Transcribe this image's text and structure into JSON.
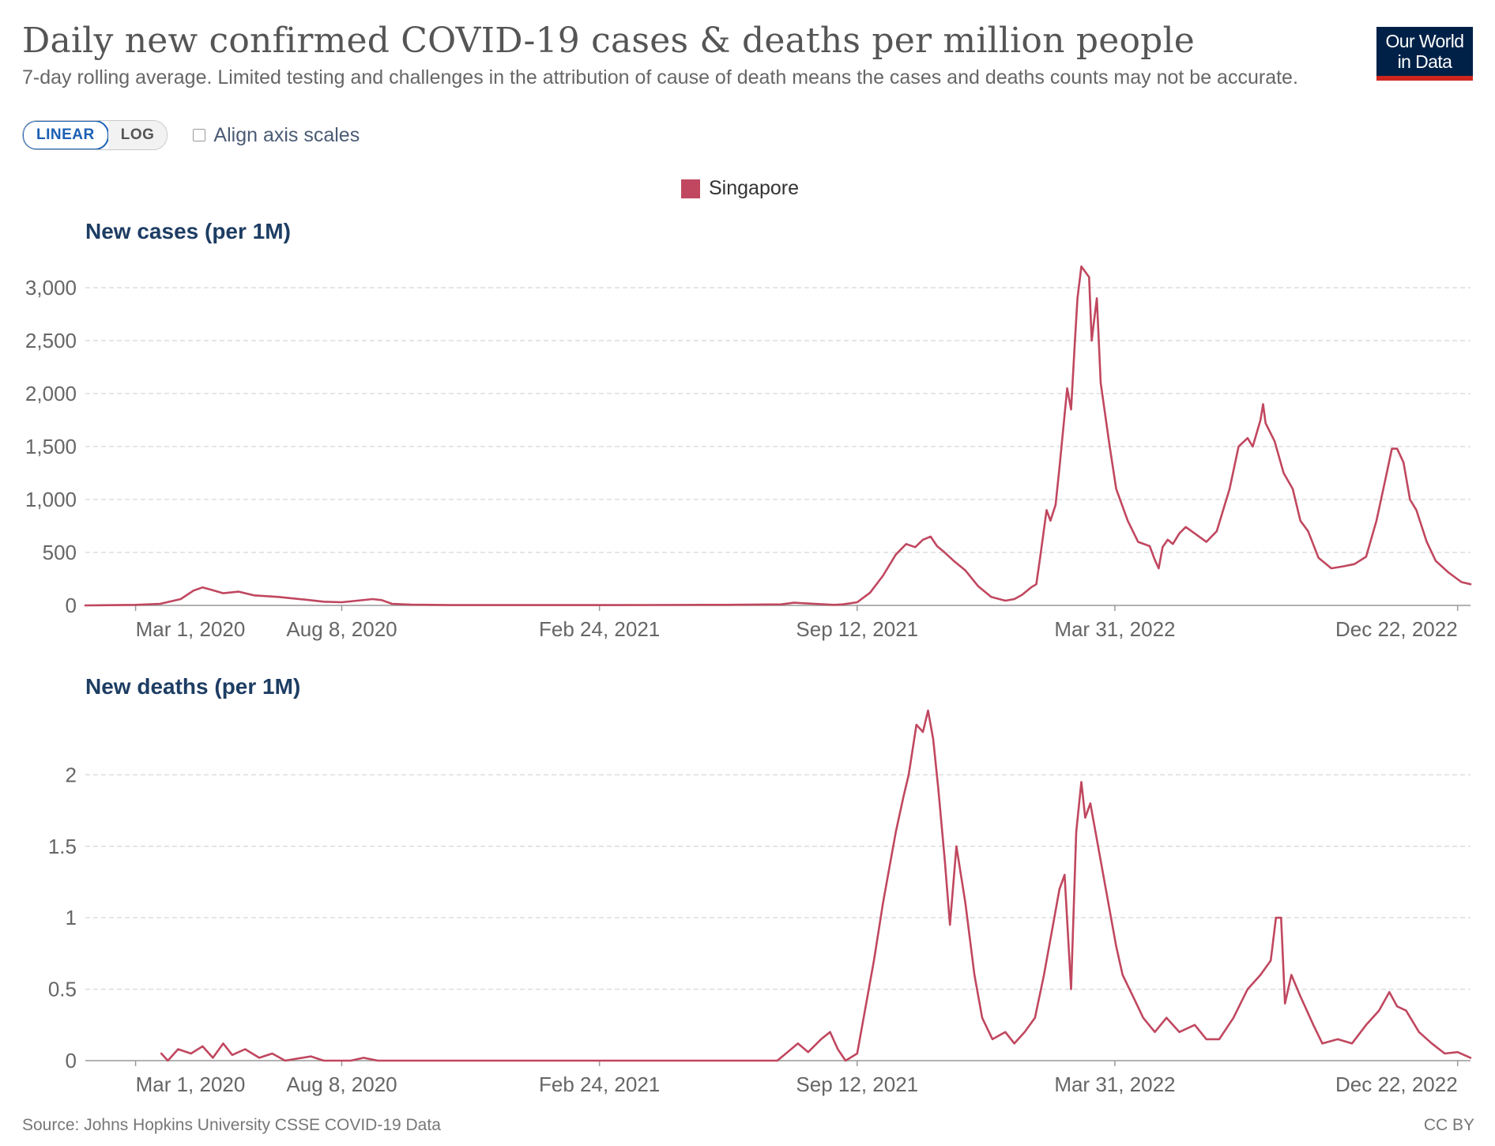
{
  "header": {
    "title": "Daily new confirmed COVID-19 cases & deaths per million people",
    "subtitle": "7-day rolling average. Limited testing and challenges in the attribution of cause of death means the cases and deaths counts may not be accurate.",
    "logo_line1": "Our World",
    "logo_line2": "in Data"
  },
  "controls": {
    "linear_label": "LINEAR",
    "log_label": "LOG",
    "align_label": "Align axis scales",
    "selected_scale": "LINEAR"
  },
  "legend": {
    "label": "Singapore",
    "color": "#c0475f"
  },
  "footer": {
    "source": "Source: Johns Hopkins University CSSE COVID-19 Data",
    "license": "CC BY"
  },
  "chart_data": [
    {
      "type": "line",
      "title": "New cases (per 1M)",
      "xlabel": "",
      "ylabel": "New cases (per 1M)",
      "x_range": [
        "2020-01-22",
        "2023-01-01"
      ],
      "ylim": [
        0,
        3000
      ],
      "y_ticks": [
        0,
        500,
        1000,
        1500,
        2000,
        2500,
        3000
      ],
      "y_tick_labels": [
        "0",
        "500",
        "1,000",
        "1,500",
        "2,000",
        "2,500",
        "3,000"
      ],
      "x_ticks": [
        "2020-03-01",
        "2020-08-08",
        "2021-02-24",
        "2021-09-12",
        "2022-03-31",
        "2022-12-22"
      ],
      "x_tick_labels": [
        "Mar 1, 2020",
        "Aug 8, 2020",
        "Feb 24, 2021",
        "Sep 12, 2021",
        "Mar 31, 2022",
        "Dec 22, 2022"
      ],
      "series": [
        {
          "name": "Singapore",
          "color": "#c0475f",
          "points": [
            [
              "2020-01-22",
              0
            ],
            [
              "2020-03-01",
              5
            ],
            [
              "2020-03-20",
              15
            ],
            [
              "2020-04-05",
              60
            ],
            [
              "2020-04-15",
              140
            ],
            [
              "2020-04-22",
              170
            ],
            [
              "2020-04-28",
              150
            ],
            [
              "2020-05-08",
              115
            ],
            [
              "2020-05-20",
              130
            ],
            [
              "2020-06-01",
              95
            ],
            [
              "2020-06-20",
              80
            ],
            [
              "2020-07-10",
              55
            ],
            [
              "2020-07-25",
              35
            ],
            [
              "2020-08-08",
              30
            ],
            [
              "2020-08-20",
              45
            ],
            [
              "2020-09-01",
              60
            ],
            [
              "2020-09-08",
              50
            ],
            [
              "2020-09-16",
              15
            ],
            [
              "2020-10-01",
              7
            ],
            [
              "2020-11-01",
              3
            ],
            [
              "2021-01-01",
              3
            ],
            [
              "2021-04-01",
              4
            ],
            [
              "2021-06-01",
              5
            ],
            [
              "2021-07-15",
              10
            ],
            [
              "2021-07-25",
              25
            ],
            [
              "2021-08-10",
              15
            ],
            [
              "2021-08-25",
              5
            ],
            [
              "2021-09-01",
              10
            ],
            [
              "2021-09-12",
              30
            ],
            [
              "2021-09-22",
              120
            ],
            [
              "2021-10-02",
              280
            ],
            [
              "2021-10-12",
              480
            ],
            [
              "2021-10-20",
              580
            ],
            [
              "2021-10-27",
              550
            ],
            [
              "2021-11-02",
              620
            ],
            [
              "2021-11-08",
              650
            ],
            [
              "2021-11-13",
              560
            ],
            [
              "2021-11-18",
              510
            ],
            [
              "2021-11-26",
              420
            ],
            [
              "2021-12-05",
              330
            ],
            [
              "2021-12-15",
              180
            ],
            [
              "2021-12-25",
              80
            ],
            [
              "2022-01-05",
              45
            ],
            [
              "2022-01-12",
              60
            ],
            [
              "2022-01-18",
              100
            ],
            [
              "2022-01-25",
              170
            ],
            [
              "2022-01-29",
              200
            ],
            [
              "2022-02-01",
              450
            ],
            [
              "2022-02-06",
              900
            ],
            [
              "2022-02-09",
              800
            ],
            [
              "2022-02-13",
              950
            ],
            [
              "2022-02-16",
              1300
            ],
            [
              "2022-02-20",
              1800
            ],
            [
              "2022-02-22",
              2050
            ],
            [
              "2022-02-25",
              1850
            ],
            [
              "2022-02-28",
              2500
            ],
            [
              "2022-03-02",
              2900
            ],
            [
              "2022-03-05",
              3200
            ],
            [
              "2022-03-08",
              3150
            ],
            [
              "2022-03-11",
              3100
            ],
            [
              "2022-03-13",
              2500
            ],
            [
              "2022-03-15",
              2700
            ],
            [
              "2022-03-17",
              2900
            ],
            [
              "2022-03-20",
              2100
            ],
            [
              "2022-03-27",
              1500
            ],
            [
              "2022-04-01",
              1100
            ],
            [
              "2022-04-10",
              800
            ],
            [
              "2022-04-18",
              600
            ],
            [
              "2022-04-27",
              560
            ],
            [
              "2022-05-01",
              430
            ],
            [
              "2022-05-04",
              350
            ],
            [
              "2022-05-07",
              550
            ],
            [
              "2022-05-11",
              620
            ],
            [
              "2022-05-15",
              580
            ],
            [
              "2022-05-20",
              680
            ],
            [
              "2022-05-25",
              740
            ],
            [
              "2022-06-01",
              680
            ],
            [
              "2022-06-10",
              600
            ],
            [
              "2022-06-18",
              700
            ],
            [
              "2022-06-28",
              1100
            ],
            [
              "2022-07-05",
              1500
            ],
            [
              "2022-07-12",
              1580
            ],
            [
              "2022-07-16",
              1500
            ],
            [
              "2022-07-22",
              1750
            ],
            [
              "2022-07-24",
              1900
            ],
            [
              "2022-07-26",
              1720
            ],
            [
              "2022-08-02",
              1550
            ],
            [
              "2022-08-09",
              1250
            ],
            [
              "2022-08-16",
              1100
            ],
            [
              "2022-08-22",
              800
            ],
            [
              "2022-08-28",
              700
            ],
            [
              "2022-09-05",
              450
            ],
            [
              "2022-09-15",
              350
            ],
            [
              "2022-09-25",
              370
            ],
            [
              "2022-10-03",
              390
            ],
            [
              "2022-10-12",
              460
            ],
            [
              "2022-10-20",
              800
            ],
            [
              "2022-10-28",
              1250
            ],
            [
              "2022-11-01",
              1480
            ],
            [
              "2022-11-05",
              1480
            ],
            [
              "2022-11-10",
              1350
            ],
            [
              "2022-11-15",
              1000
            ],
            [
              "2022-11-20",
              900
            ],
            [
              "2022-11-28",
              600
            ],
            [
              "2022-12-05",
              420
            ],
            [
              "2022-12-15",
              310
            ],
            [
              "2022-12-25",
              220
            ],
            [
              "2023-01-01",
              200
            ]
          ]
        }
      ]
    },
    {
      "type": "line",
      "title": "New deaths (per 1M)",
      "xlabel": "",
      "ylabel": "New deaths (per 1M)",
      "x_range": [
        "2020-01-22",
        "2023-01-01"
      ],
      "ylim": [
        0,
        2.4
      ],
      "y_ticks": [
        0,
        0.5,
        1,
        1.5,
        2
      ],
      "y_tick_labels": [
        "0",
        "0.5",
        "1",
        "1.5",
        "2"
      ],
      "x_ticks": [
        "2020-03-01",
        "2020-08-08",
        "2021-02-24",
        "2021-09-12",
        "2022-03-31",
        "2022-12-22"
      ],
      "x_tick_labels": [
        "Mar 1, 2020",
        "Aug 8, 2020",
        "Feb 24, 2021",
        "Sep 12, 2021",
        "Mar 31, 2022",
        "Dec 22, 2022"
      ],
      "series": [
        {
          "name": "Singapore",
          "color": "#c0475f",
          "points": [
            [
              "2020-03-21",
              0.05
            ],
            [
              "2020-03-26",
              0
            ],
            [
              "2020-04-03",
              0.08
            ],
            [
              "2020-04-13",
              0.05
            ],
            [
              "2020-04-22",
              0.1
            ],
            [
              "2020-04-30",
              0.02
            ],
            [
              "2020-05-08",
              0.12
            ],
            [
              "2020-05-15",
              0.04
            ],
            [
              "2020-05-25",
              0.08
            ],
            [
              "2020-06-05",
              0.02
            ],
            [
              "2020-06-15",
              0.05
            ],
            [
              "2020-06-25",
              0
            ],
            [
              "2020-07-15",
              0.03
            ],
            [
              "2020-07-25",
              0
            ],
            [
              "2020-08-15",
              0
            ],
            [
              "2020-08-25",
              0.02
            ],
            [
              "2020-09-05",
              0
            ],
            [
              "2021-07-12",
              0
            ],
            [
              "2021-07-20",
              0.06
            ],
            [
              "2021-07-28",
              0.12
            ],
            [
              "2021-08-05",
              0.06
            ],
            [
              "2021-08-15",
              0.15
            ],
            [
              "2021-08-22",
              0.2
            ],
            [
              "2021-08-28",
              0.08
            ],
            [
              "2021-09-03",
              0
            ],
            [
              "2021-09-12",
              0.05
            ],
            [
              "2021-09-18",
              0.35
            ],
            [
              "2021-09-25",
              0.7
            ],
            [
              "2021-10-02",
              1.1
            ],
            [
              "2021-10-06",
              1.3
            ],
            [
              "2021-10-12",
              1.6
            ],
            [
              "2021-10-18",
              1.85
            ],
            [
              "2021-10-22",
              2.0
            ],
            [
              "2021-10-28",
              2.35
            ],
            [
              "2021-11-02",
              2.3
            ],
            [
              "2021-11-06",
              2.45
            ],
            [
              "2021-11-10",
              2.25
            ],
            [
              "2021-11-14",
              1.9
            ],
            [
              "2021-11-19",
              1.4
            ],
            [
              "2021-11-23",
              0.95
            ],
            [
              "2021-11-28",
              1.5
            ],
            [
              "2021-12-05",
              1.1
            ],
            [
              "2021-12-12",
              0.6
            ],
            [
              "2021-12-18",
              0.3
            ],
            [
              "2021-12-26",
              0.15
            ],
            [
              "2022-01-05",
              0.2
            ],
            [
              "2022-01-12",
              0.12
            ],
            [
              "2022-01-20",
              0.2
            ],
            [
              "2022-01-28",
              0.3
            ],
            [
              "2022-02-04",
              0.6
            ],
            [
              "2022-02-10",
              0.9
            ],
            [
              "2022-02-16",
              1.2
            ],
            [
              "2022-02-20",
              1.3
            ],
            [
              "2022-02-25",
              0.5
            ],
            [
              "2022-03-01",
              1.6
            ],
            [
              "2022-03-05",
              1.95
            ],
            [
              "2022-03-08",
              1.7
            ],
            [
              "2022-03-12",
              1.8
            ],
            [
              "2022-03-18",
              1.5
            ],
            [
              "2022-03-24",
              1.2
            ],
            [
              "2022-04-01",
              0.8
            ],
            [
              "2022-04-06",
              0.6
            ],
            [
              "2022-04-14",
              0.45
            ],
            [
              "2022-04-22",
              0.3
            ],
            [
              "2022-05-01",
              0.2
            ],
            [
              "2022-05-10",
              0.3
            ],
            [
              "2022-05-20",
              0.2
            ],
            [
              "2022-06-01",
              0.25
            ],
            [
              "2022-06-10",
              0.15
            ],
            [
              "2022-06-20",
              0.15
            ],
            [
              "2022-07-01",
              0.3
            ],
            [
              "2022-07-12",
              0.5
            ],
            [
              "2022-07-22",
              0.6
            ],
            [
              "2022-07-30",
              0.7
            ],
            [
              "2022-08-03",
              1.0
            ],
            [
              "2022-08-07",
              1.0
            ],
            [
              "2022-08-10",
              0.4
            ],
            [
              "2022-08-15",
              0.6
            ],
            [
              "2022-08-22",
              0.45
            ],
            [
              "2022-09-01",
              0.25
            ],
            [
              "2022-09-08",
              0.12
            ],
            [
              "2022-09-20",
              0.15
            ],
            [
              "2022-10-01",
              0.12
            ],
            [
              "2022-10-12",
              0.25
            ],
            [
              "2022-10-22",
              0.35
            ],
            [
              "2022-10-30",
              0.48
            ],
            [
              "2022-11-05",
              0.38
            ],
            [
              "2022-11-12",
              0.35
            ],
            [
              "2022-11-22",
              0.2
            ],
            [
              "2022-12-02",
              0.12
            ],
            [
              "2022-12-12",
              0.05
            ],
            [
              "2022-12-22",
              0.06
            ],
            [
              "2023-01-01",
              0.02
            ]
          ]
        }
      ]
    }
  ]
}
